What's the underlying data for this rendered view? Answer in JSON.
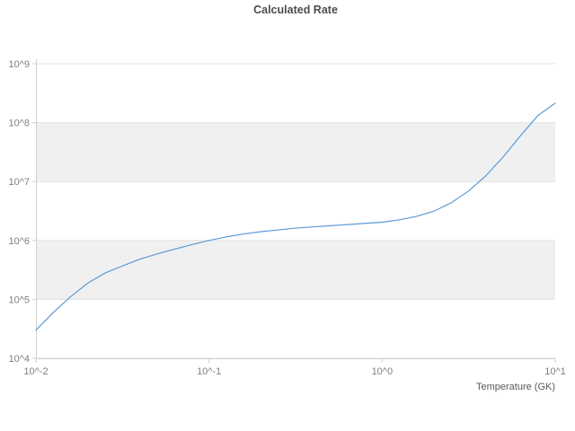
{
  "chart_data": {
    "type": "line",
    "title": "Calculated Rate",
    "xlabel": "Temperature (GK)",
    "ylabel": "",
    "x_scale": "log",
    "y_scale": "log",
    "xlim": [
      0.01,
      10
    ],
    "ylim": [
      10000,
      1000000000
    ],
    "x_tick_labels": [
      "10^-2",
      "10^-1",
      "10^0",
      "10^1"
    ],
    "x_tick_values": [
      0.01,
      0.1,
      1,
      10
    ],
    "y_tick_labels": [
      "10^4",
      "10^5",
      "10^6",
      "10^7",
      "10^8",
      "10^9"
    ],
    "y_tick_values": [
      10000,
      100000,
      1000000,
      10000000,
      100000000,
      1000000000
    ],
    "grid": "horizontal-only",
    "legend": "none",
    "shaded_bands": [
      [
        100000,
        1000000
      ],
      [
        10000000,
        100000000
      ]
    ],
    "series": [
      {
        "name": "calculated-rate",
        "x": [
          0.01,
          0.0126,
          0.0158,
          0.02,
          0.0251,
          0.0316,
          0.0398,
          0.0501,
          0.0631,
          0.0794,
          0.1,
          0.126,
          0.158,
          0.2,
          0.251,
          0.316,
          0.398,
          0.501,
          0.631,
          0.794,
          1.0,
          1.26,
          1.58,
          2.0,
          2.51,
          3.16,
          3.98,
          5.01,
          6.31,
          7.94,
          10.0
        ],
        "y": [
          30000,
          60000,
          110000,
          190000,
          280000,
          370000,
          480000,
          590000,
          710000,
          850000,
          1000000,
          1150000,
          1290000,
          1410000,
          1510000,
          1620000,
          1700000,
          1780000,
          1860000,
          1950000,
          2040000,
          2240000,
          2570000,
          3160000,
          4370000,
          6920000,
          12600000,
          26300000,
          60300000,
          132000000,
          214000000
        ]
      }
    ],
    "colors": {
      "line": "#5b9bd5",
      "band": "#f0f0f0",
      "grid": "#e3e3e3",
      "axis": "#cfcfcf",
      "tick_text": "#808080",
      "title_text": "#4d4d4d"
    }
  }
}
